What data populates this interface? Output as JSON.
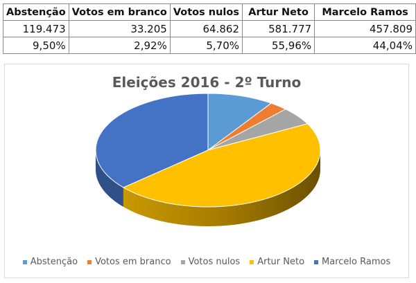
{
  "table": {
    "headers": [
      "Abstenção",
      "Votos em branco",
      "Votos nulos",
      "Artur Neto",
      "Marcelo Ramos"
    ],
    "votes": [
      "119.473",
      "33.205",
      "64.862",
      "581.777",
      "457.809"
    ],
    "percents": [
      "9,50%",
      "2,92%",
      "5,70%",
      "55,96%",
      "44,04%"
    ]
  },
  "chart": {
    "title": "Eleições 2016  - 2º Turno",
    "legend": [
      {
        "label": "Abstenção",
        "color": "#5b9bd5"
      },
      {
        "label": "Votos em branco",
        "color": "#ed7d31"
      },
      {
        "label": "Votos nulos",
        "color": "#a5a5a5"
      },
      {
        "label": "Artur Neto",
        "color": "#ffc000"
      },
      {
        "label": "Marcelo Ramos",
        "color": "#4472c4"
      }
    ]
  },
  "chart_data": {
    "type": "pie",
    "title": "Eleições 2016  - 2º Turno",
    "categories": [
      "Abstenção",
      "Votos em branco",
      "Votos nulos",
      "Artur Neto",
      "Marcelo Ramos"
    ],
    "values": [
      119473,
      33205,
      64862,
      581777,
      457809
    ],
    "colors": [
      "#5b9bd5",
      "#ed7d31",
      "#a5a5a5",
      "#ffc000",
      "#4472c4"
    ],
    "style": "3d-pie",
    "legend_position": "bottom"
  }
}
